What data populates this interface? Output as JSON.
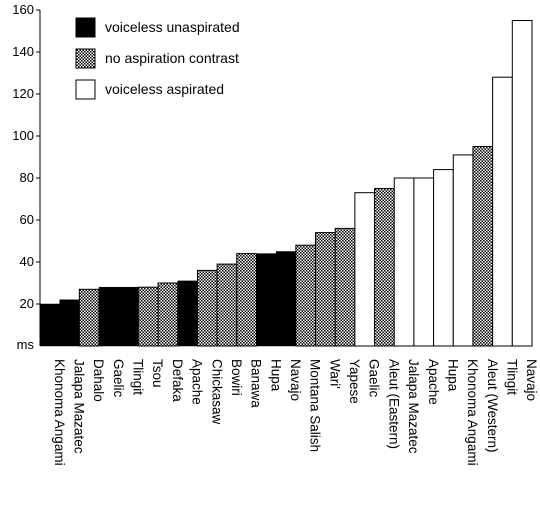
{
  "chart_data": {
    "type": "bar",
    "title": "",
    "xlabel": "",
    "ylabel": "ms",
    "ylim": [
      0,
      160
    ],
    "y_ticks": [
      20,
      40,
      60,
      80,
      100,
      120,
      140,
      160
    ],
    "grid": false,
    "legend_position": "top-left",
    "legend": [
      {
        "key": "unasp",
        "label": "voiceless unaspirated"
      },
      {
        "key": "none",
        "label": "no aspiration contrast"
      },
      {
        "key": "asp",
        "label": "voiceless aspirated"
      }
    ],
    "categories": [
      "Khonoma Angami",
      "Jalapa Mazatec",
      "Dahalo",
      "Gaelic",
      "Tlingit",
      "Tsou",
      "Defaka",
      "Apache",
      "Chickasaw",
      "Bowiri",
      "Banawa",
      "Hupa",
      "Navajo",
      "Montana  Salish",
      "Wari'",
      "Yapese",
      "Gaelic",
      "Aleut (Eastern)",
      "Jalapa Mazatec",
      "Apache",
      "Hupa",
      "Khonoma Angami",
      "Aleut (Western)",
      "Tlingit",
      "Navajo"
    ],
    "values": [
      20,
      22,
      27,
      28,
      28,
      28,
      30,
      31,
      36,
      39,
      44,
      44,
      45,
      48,
      54,
      56,
      73,
      75,
      80,
      80,
      84,
      91,
      95,
      128,
      155
    ],
    "groups": [
      "unasp",
      "unasp",
      "none",
      "unasp",
      "unasp",
      "none",
      "none",
      "unasp",
      "none",
      "none",
      "none",
      "unasp",
      "unasp",
      "none",
      "none",
      "none",
      "asp",
      "none",
      "asp",
      "asp",
      "asp",
      "asp",
      "none",
      "asp",
      "asp"
    ],
    "colors": {
      "unasp": "#000000",
      "none": "#a8a8a8",
      "asp": "#ffffff",
      "stroke": "#000000"
    }
  }
}
